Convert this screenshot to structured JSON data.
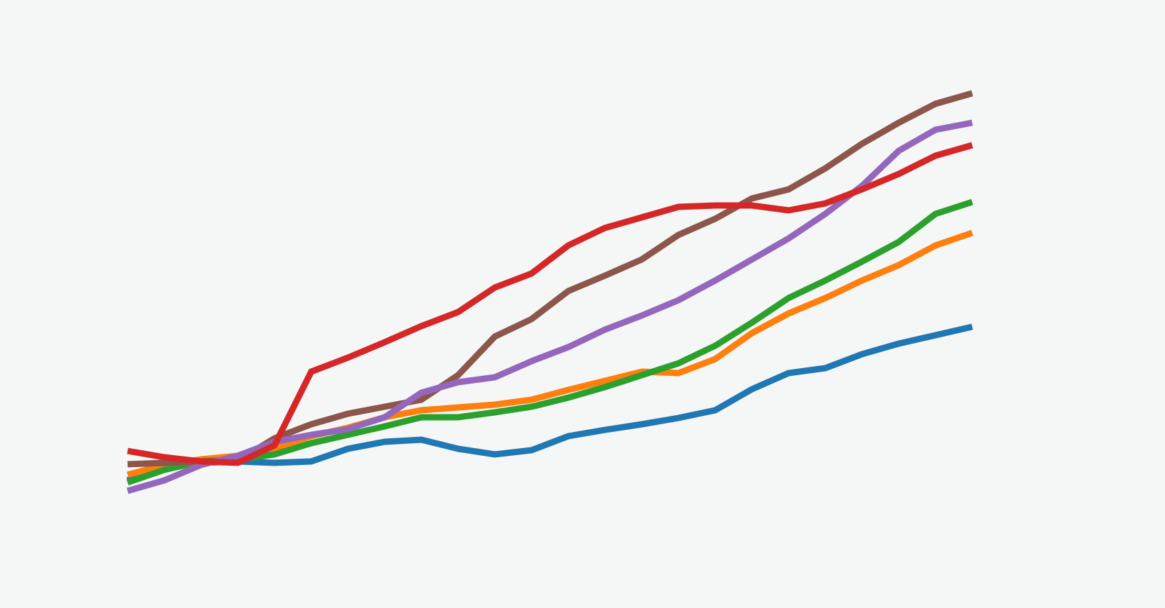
{
  "chart_data": {
    "type": "line",
    "categories": [
      null,
      null,
      null,
      null,
      null,
      null,
      null,
      null,
      null,
      null,
      null,
      null,
      null,
      null,
      null,
      null,
      null,
      null,
      null,
      null,
      null,
      null,
      null,
      null
    ],
    "ylim": [
      0,
      867
    ],
    "series": [
      {
        "color": "#1f77b4",
        "values": [
          182,
          202,
          207,
          209,
          207,
          209,
          227,
          237,
          240,
          227,
          219,
          225,
          245,
          254,
          262,
          271,
          282,
          312,
          335,
          342,
          362,
          377,
          389,
          401
        ]
      },
      {
        "color": "#ff7f0e",
        "values": [
          190,
          204,
          212,
          217,
          227,
          245,
          257,
          272,
          282,
          286,
          290,
          297,
          311,
          324,
          337,
          335,
          355,
          392,
          420,
          442,
          467,
          489,
          517,
          535
        ]
      },
      {
        "color": "#2ca02c",
        "values": [
          179,
          197,
          209,
          212,
          219,
          235,
          247,
          259,
          272,
          272,
          279,
          287,
          300,
          315,
          332,
          349,
          374,
          407,
          442,
          467,
          494,
          522,
          562,
          579
        ]
      },
      {
        "color": "#8c564b",
        "values": [
          205,
          207,
          209,
          210,
          242,
          262,
          277,
          287,
          297,
          332,
          387,
          412,
          452,
          474,
          497,
          532,
          555,
          584,
          597,
          627,
          662,
          692,
          719,
          734
        ]
      },
      {
        "color": "#9467bd",
        "values": [
          167,
          182,
          204,
          217,
          237,
          247,
          255,
          272,
          307,
          322,
          329,
          352,
          372,
          397,
          417,
          439,
          467,
          497,
          527,
          562,
          602,
          652,
          682,
          692
        ]
      },
      {
        "color": "#d62728",
        "values": [
          224,
          215,
          209,
          207,
          232,
          337,
          357,
          379,
          402,
          422,
          457,
          477,
          517,
          542,
          557,
          572,
          574,
          574,
          567,
          577,
          597,
          619,
          645,
          660
        ]
      }
    ]
  }
}
